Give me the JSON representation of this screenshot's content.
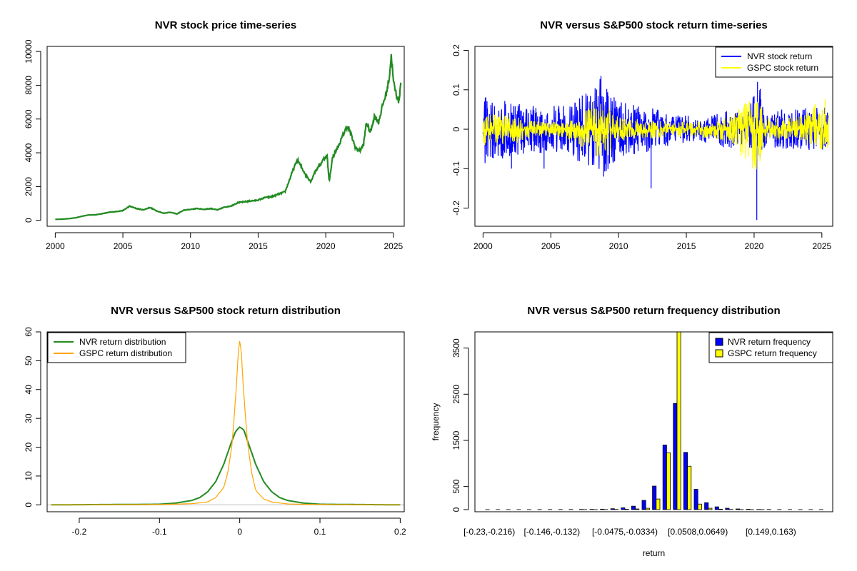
{
  "chart_data": [
    {
      "id": "price",
      "type": "line",
      "title": "NVR stock price time-series",
      "xlim": [
        1999.4,
        2025.8
      ],
      "ylim": [
        -350,
        10300
      ],
      "x_ticks": [
        2000,
        2005,
        2010,
        2015,
        2020,
        2025
      ],
      "y_ticks": [
        0,
        2000,
        4000,
        6000,
        8000,
        10000
      ],
      "color": "#228B22",
      "series": [
        {
          "x": [
            2000.0,
            2000.5,
            2001.0,
            2001.5,
            2002.0,
            2002.5,
            2003.0,
            2003.5,
            2004.0,
            2004.5,
            2005.0,
            2005.5,
            2006.0,
            2006.5,
            2007.0,
            2007.5,
            2008.0,
            2008.5,
            2009.0,
            2009.5,
            2010.0,
            2010.5,
            2011.0,
            2011.5,
            2012.0,
            2012.5,
            2013.0,
            2013.5,
            2014.0,
            2014.5,
            2015.0,
            2015.5,
            2016.0,
            2016.5,
            2017.0,
            2017.5,
            2017.9,
            2018.3,
            2018.6,
            2018.9,
            2019.2,
            2019.5,
            2019.9,
            2020.1,
            2020.25,
            2020.5,
            2020.8,
            2021.0,
            2021.3,
            2021.6,
            2021.9,
            2022.2,
            2022.5,
            2022.8,
            2023.0,
            2023.3,
            2023.6,
            2023.9,
            2024.2,
            2024.5,
            2024.7,
            2024.85,
            2025.0,
            2025.2,
            2025.4,
            2025.55
          ],
          "y": [
            60,
            70,
            100,
            150,
            250,
            320,
            330,
            400,
            480,
            520,
            580,
            840,
            700,
            620,
            760,
            560,
            420,
            480,
            380,
            600,
            650,
            700,
            650,
            700,
            620,
            780,
            850,
            1050,
            1100,
            1150,
            1200,
            1350,
            1400,
            1550,
            1700,
            2800,
            3600,
            3000,
            2600,
            2300,
            2900,
            3200,
            3700,
            3800,
            2300,
            3700,
            4200,
            4500,
            5100,
            5600,
            5000,
            4300,
            4100,
            4500,
            5800,
            5200,
            6200,
            5800,
            6800,
            7600,
            8500,
            9800,
            8200,
            7500,
            7000,
            8200
          ]
        }
      ]
    },
    {
      "id": "returns",
      "type": "line",
      "title": "NVR versus S&P500 stock return time-series",
      "xlim": [
        1999.4,
        2025.8
      ],
      "ylim": [
        -0.246,
        0.21
      ],
      "x_ticks": [
        2000,
        2005,
        2010,
        2015,
        2020,
        2025
      ],
      "y_ticks": [
        -0.2,
        -0.1,
        0.0,
        0.1,
        0.2
      ],
      "legend_position": "top-right",
      "series": [
        {
          "name": "NVR stock return",
          "color": "#0000FF",
          "envelope": {
            "x": [
              2000,
              2002,
              2004,
              2006,
              2008,
              2008.8,
              2010,
              2012,
              2014,
              2016,
              2018,
              2019.5,
              2020.2,
              2021,
              2023,
              2025.5
            ],
            "upper": [
              0.09,
              0.07,
              0.06,
              0.06,
              0.1,
              0.14,
              0.07,
              0.06,
              0.04,
              0.03,
              0.05,
              0.04,
              0.13,
              0.05,
              0.05,
              0.06
            ],
            "lower": [
              -0.09,
              -0.07,
              -0.06,
              -0.06,
              -0.1,
              -0.12,
              -0.07,
              -0.06,
              -0.04,
              -0.03,
              -0.05,
              -0.04,
              -0.1,
              -0.05,
              -0.05,
              -0.06
            ]
          },
          "spikes": [
            [
              2012.4,
              -0.15
            ],
            [
              2020.2,
              -0.23
            ],
            [
              2020.25,
              0.12
            ],
            [
              2008.7,
              0.135
            ],
            [
              2008.9,
              -0.12
            ],
            [
              2004.5,
              -0.1
            ],
            [
              2002.1,
              -0.1
            ]
          ]
        },
        {
          "name": "GSPC stock return",
          "color": "#FFFF00",
          "envelope": {
            "x": [
              2000,
              2002,
              2004,
              2006,
              2008,
              2008.8,
              2009.5,
              2010,
              2012,
              2014,
              2016,
              2018,
              2020.2,
              2021,
              2023,
              2025.5
            ],
            "upper": [
              0.04,
              0.04,
              0.02,
              0.02,
              0.06,
              0.1,
              0.05,
              0.03,
              0.025,
              0.02,
              0.02,
              0.03,
              0.09,
              0.03,
              0.03,
              0.09
            ],
            "lower": [
              -0.04,
              -0.04,
              -0.02,
              -0.02,
              -0.06,
              -0.09,
              -0.05,
              -0.03,
              -0.025,
              -0.02,
              -0.02,
              -0.03,
              -0.12,
              -0.03,
              -0.03,
              -0.06
            ]
          }
        }
      ]
    },
    {
      "id": "density",
      "type": "line",
      "title": "NVR versus S&P500 stock return distribution",
      "xlim": [
        -0.24,
        0.205
      ],
      "ylim": [
        -2.4,
        60
      ],
      "x_ticks": [
        -0.2,
        -0.1,
        0.0,
        0.1,
        0.2
      ],
      "y_ticks": [
        0,
        10,
        20,
        30,
        40,
        50,
        60
      ],
      "legend_position": "top-left",
      "series": [
        {
          "name": "NVR return distribution",
          "color": "#228B22",
          "x": [
            -0.235,
            -0.1,
            -0.08,
            -0.06,
            -0.05,
            -0.04,
            -0.03,
            -0.02,
            -0.015,
            -0.01,
            -0.005,
            0.0,
            0.005,
            0.01,
            0.015,
            0.02,
            0.03,
            0.04,
            0.05,
            0.06,
            0.08,
            0.1,
            0.2
          ],
          "y": [
            0,
            0.2,
            0.6,
            1.5,
            2.5,
            4.5,
            8,
            14,
            18,
            22,
            25.5,
            27,
            26,
            22,
            18,
            14,
            8,
            4.5,
            2.5,
            1.5,
            0.6,
            0.2,
            0
          ]
        },
        {
          "name": "GSPC return distribution",
          "color": "#FFA500",
          "x": [
            -0.235,
            -0.1,
            -0.06,
            -0.04,
            -0.03,
            -0.02,
            -0.015,
            -0.01,
            -0.007,
            -0.004,
            -0.002,
            0.0,
            0.002,
            0.004,
            0.007,
            0.01,
            0.015,
            0.02,
            0.03,
            0.04,
            0.06,
            0.1,
            0.2
          ],
          "y": [
            0,
            0.1,
            0.4,
            1,
            2.5,
            6,
            11,
            20,
            30,
            42,
            52,
            57,
            53,
            43,
            31,
            21,
            11,
            5,
            2,
            1,
            0.3,
            0.1,
            0
          ]
        }
      ]
    },
    {
      "id": "histogram",
      "type": "bar",
      "title": "NVR versus S&P500 return frequency distribution",
      "xlabel": "return",
      "ylabel": "frequency",
      "ylim": [
        0,
        3850
      ],
      "y_ticks": [
        0,
        500,
        1500,
        2500,
        3500
      ],
      "category_labels_shown": [
        {
          "index": 0,
          "label": "[-0.23,-0.216)"
        },
        {
          "index": 6,
          "label": "[-0.146,-0.132)"
        },
        {
          "index": 13,
          "label": "[-0.0475,-0.0334)"
        },
        {
          "index": 20,
          "label": "[0.0508,0.0649)"
        },
        {
          "index": 27,
          "label": "[0.149,0.163)"
        }
      ],
      "legend_position": "top-right",
      "series": [
        {
          "name": "NVR return frequency",
          "color": "#0000FF",
          "values": [
            1,
            1,
            1,
            1,
            1,
            2,
            2,
            2,
            3,
            5,
            6,
            10,
            20,
            40,
            75,
            200,
            510,
            1400,
            2300,
            1240,
            440,
            150,
            60,
            30,
            15,
            8,
            4,
            3,
            2,
            1,
            1,
            1,
            1
          ]
        },
        {
          "name": "GSPC return frequency",
          "color": "#FFFF00",
          "values": [
            0,
            0,
            0,
            0,
            0,
            0,
            0,
            0,
            0,
            1,
            1,
            2,
            4,
            8,
            15,
            30,
            230,
            1230,
            3850,
            940,
            120,
            30,
            10,
            4,
            2,
            1,
            1,
            0,
            0,
            0,
            0,
            0,
            0
          ]
        }
      ]
    }
  ]
}
